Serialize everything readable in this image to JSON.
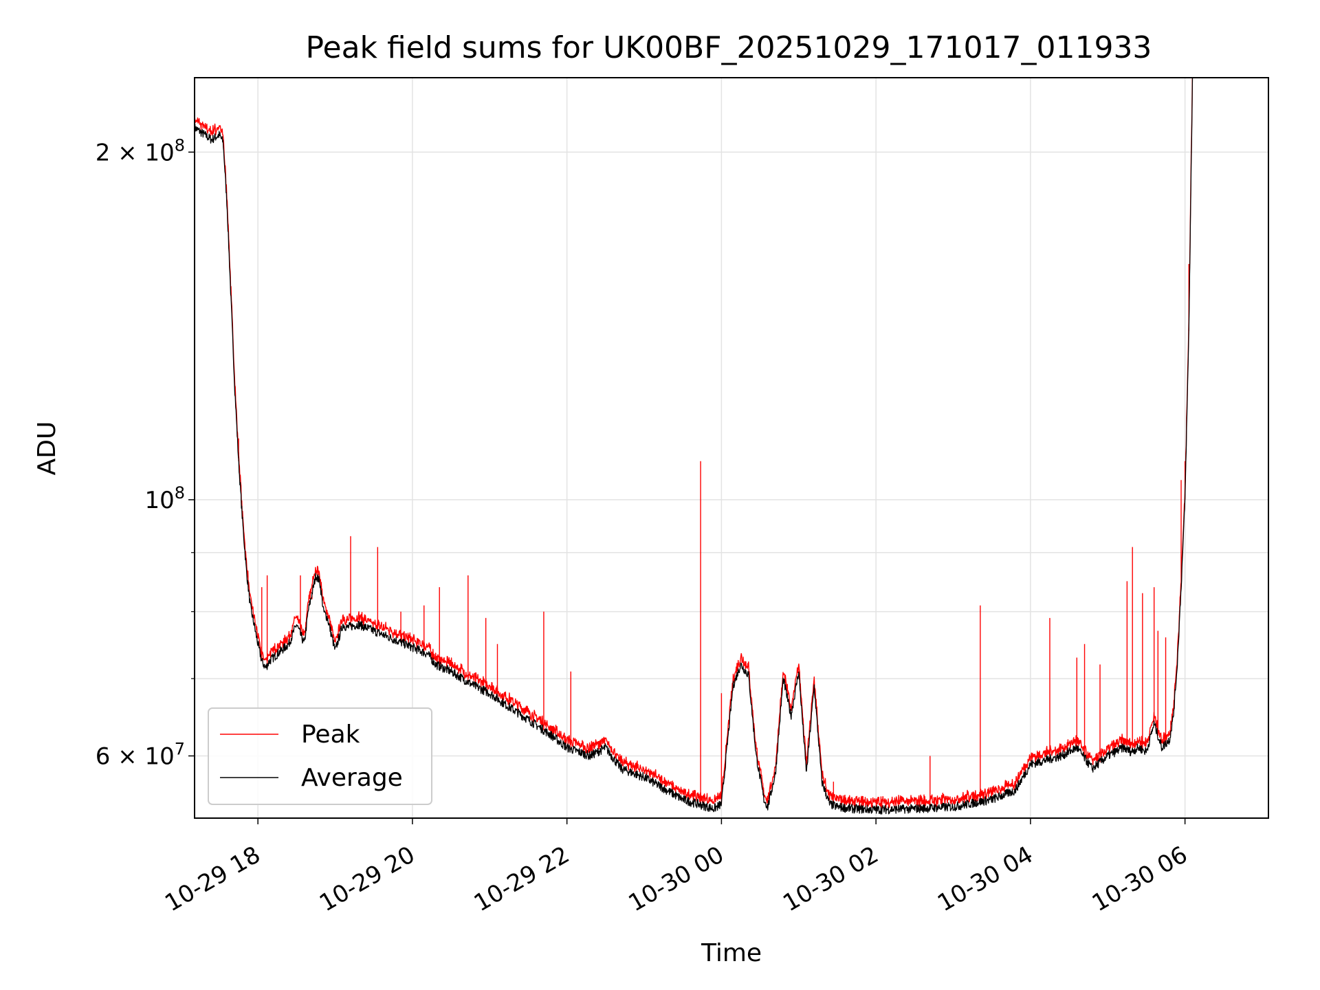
{
  "chart_data": {
    "type": "line",
    "title": "Peak field sums for UK00BF_20251029_171017_011933",
    "xlabel": "Time",
    "ylabel": "ADU",
    "yscale": "log",
    "grid": true,
    "legend_position": "lower-left",
    "xlim_hours": [
      -0.82,
      13.08
    ],
    "ylim": [
      53000000,
      232000000
    ],
    "x_ticks": [
      {
        "label": "10-29 18",
        "hour": 0
      },
      {
        "label": "10-29 20",
        "hour": 2
      },
      {
        "label": "10-29 22",
        "hour": 4
      },
      {
        "label": "10-30 00",
        "hour": 6
      },
      {
        "label": "10-30 02",
        "hour": 8
      },
      {
        "label": "10-30 04",
        "hour": 10
      },
      {
        "label": "10-30 06",
        "hour": 12
      }
    ],
    "y_major_ticks": [
      {
        "value": 60000000,
        "mantissa": "6 × 10",
        "exp": "7"
      },
      {
        "value": 100000000,
        "mantissa": "10",
        "exp": "8"
      },
      {
        "value": 200000000,
        "mantissa": "2 × 10",
        "exp": "8"
      }
    ],
    "y_minor_ticks": [
      70000000,
      80000000,
      90000000
    ],
    "series_styles": [
      {
        "name": "Peak",
        "color": "#ff0000"
      },
      {
        "name": "Average",
        "color": "#000000"
      }
    ],
    "average_series": {
      "name": "Average",
      "color": "#000000",
      "hours": [
        -0.82,
        -0.6,
        -0.5,
        -0.45,
        -0.4,
        -0.35,
        -0.3,
        -0.25,
        -0.2,
        -0.15,
        -0.1,
        -0.05,
        0.0,
        0.05,
        0.1,
        0.15,
        0.2,
        0.3,
        0.4,
        0.5,
        0.6,
        0.65,
        0.75,
        0.8,
        0.85,
        0.9,
        1.0,
        1.1,
        1.15,
        1.3,
        1.5,
        1.6,
        1.8,
        2.0,
        2.2,
        2.3,
        2.5,
        2.8,
        3.0,
        3.2,
        3.5,
        3.8,
        4.0,
        4.3,
        4.5,
        4.7,
        5.0,
        5.3,
        5.5,
        5.7,
        5.9,
        6.0,
        6.15,
        6.25,
        6.35,
        6.45,
        6.55,
        6.6,
        6.7,
        6.8,
        6.9,
        7.0,
        7.1,
        7.2,
        7.3,
        7.4,
        7.5,
        7.7,
        8.0,
        8.5,
        9.0,
        9.5,
        9.8,
        10.0,
        10.2,
        10.4,
        10.6,
        10.8,
        11.0,
        11.2,
        11.3,
        11.4,
        11.5,
        11.6,
        11.7,
        11.8,
        11.85,
        11.9,
        11.95,
        12.0,
        12.05,
        12.1
      ],
      "values": [
        210000000,
        205000000,
        207000000,
        204000000,
        180000000,
        150000000,
        125000000,
        108000000,
        96000000,
        87000000,
        81000000,
        78000000,
        75000000,
        72500000,
        71500000,
        72500000,
        73000000,
        74000000,
        75000000,
        78000000,
        75000000,
        80000000,
        86000000,
        85000000,
        80000000,
        79000000,
        74000000,
        78000000,
        77500000,
        78000000,
        77000000,
        76500000,
        75500000,
        74500000,
        73500000,
        72000000,
        71000000,
        69000000,
        68000000,
        66500000,
        64500000,
        62500000,
        61000000,
        60000000,
        61000000,
        58500000,
        57500000,
        56000000,
        55000000,
        54500000,
        54000000,
        54500000,
        69000000,
        72000000,
        70500000,
        60000000,
        55000000,
        54200000,
        58000000,
        70000000,
        65000000,
        71000000,
        58000000,
        69000000,
        57000000,
        54500000,
        54200000,
        54000000,
        53900000,
        54000000,
        54200000,
        55000000,
        56000000,
        59000000,
        59500000,
        60000000,
        61000000,
        58500000,
        60000000,
        61000000,
        60500000,
        61000000,
        60500000,
        64000000,
        61000000,
        62000000,
        65000000,
        72000000,
        84000000,
        100000000,
        140000000,
        240000000
      ]
    },
    "peak_series": {
      "name": "Peak",
      "color": "#ff0000",
      "offset_factor": 1.01,
      "spikes": [
        {
          "hour": -0.25,
          "value": 113000000
        },
        {
          "hour": 0.05,
          "value": 84000000
        },
        {
          "hour": 0.12,
          "value": 86000000
        },
        {
          "hour": 0.55,
          "value": 86000000
        },
        {
          "hour": 0.7,
          "value": 82000000
        },
        {
          "hour": 1.2,
          "value": 93000000
        },
        {
          "hour": 1.55,
          "value": 91000000
        },
        {
          "hour": 1.85,
          "value": 80000000
        },
        {
          "hour": 2.15,
          "value": 81000000
        },
        {
          "hour": 2.35,
          "value": 84000000
        },
        {
          "hour": 2.72,
          "value": 86000000
        },
        {
          "hour": 2.95,
          "value": 79000000
        },
        {
          "hour": 3.1,
          "value": 75000000
        },
        {
          "hour": 3.7,
          "value": 80000000
        },
        {
          "hour": 4.05,
          "value": 71000000
        },
        {
          "hour": 5.73,
          "value": 108000000
        },
        {
          "hour": 6.0,
          "value": 68000000
        },
        {
          "hour": 7.45,
          "value": 57000000
        },
        {
          "hour": 8.7,
          "value": 60000000
        },
        {
          "hour": 9.35,
          "value": 81000000
        },
        {
          "hour": 10.25,
          "value": 79000000
        },
        {
          "hour": 10.6,
          "value": 73000000
        },
        {
          "hour": 10.7,
          "value": 75000000
        },
        {
          "hour": 10.9,
          "value": 72000000
        },
        {
          "hour": 11.25,
          "value": 85000000
        },
        {
          "hour": 11.32,
          "value": 91000000
        },
        {
          "hour": 11.45,
          "value": 83000000
        },
        {
          "hour": 11.6,
          "value": 84000000
        },
        {
          "hour": 11.65,
          "value": 77000000
        },
        {
          "hour": 11.75,
          "value": 76000000
        },
        {
          "hour": 11.95,
          "value": 104000000
        },
        {
          "hour": 12.0,
          "value": 108000000
        },
        {
          "hour": 12.05,
          "value": 160000000
        }
      ]
    },
    "legend": [
      {
        "label": "Peak",
        "color": "#ff0000"
      },
      {
        "label": "Average",
        "color": "#000000"
      }
    ]
  }
}
